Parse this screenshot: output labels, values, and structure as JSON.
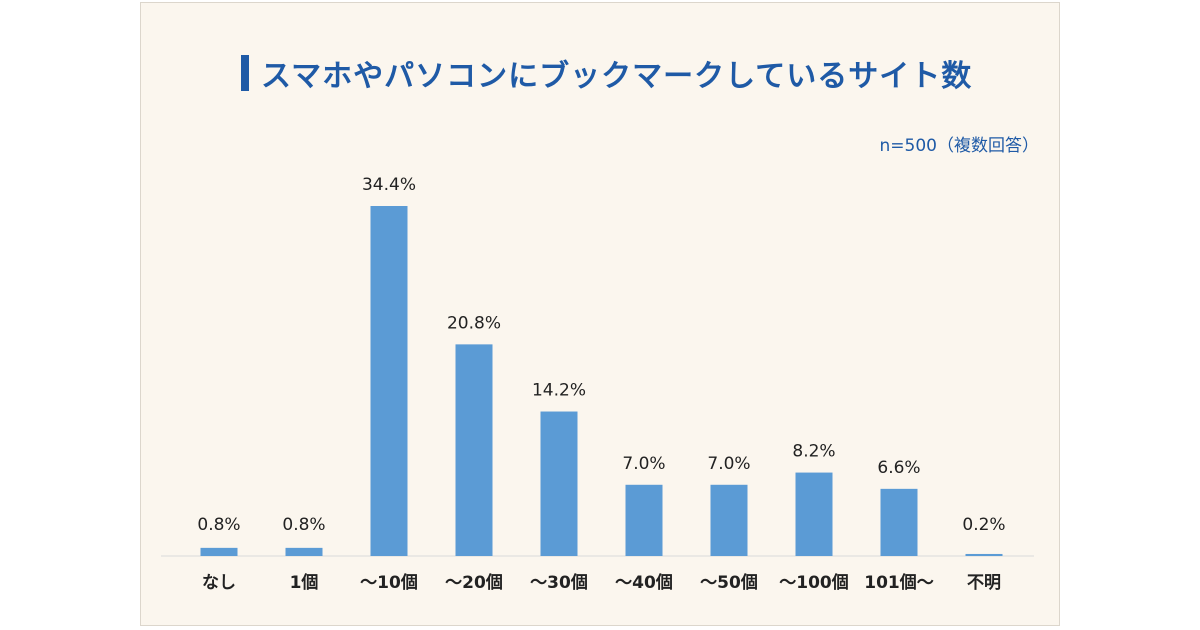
{
  "title": "スマホやパソコンにブックマークしているサイト数",
  "note": "n=500（複数回答）",
  "colors": {
    "bar": "#5b9bd5",
    "title": "#1f5aa6",
    "background": "#fbf6ee",
    "baseline": "#d9d9d9"
  },
  "chart_data": {
    "type": "bar",
    "title": "スマホやパソコンにブックマークしているサイト数",
    "categories": [
      "なし",
      "1個",
      "～10個",
      "～20個",
      "～30個",
      "～40個",
      "～50個",
      "～100個",
      "101個～",
      "不明"
    ],
    "values": [
      0.8,
      0.8,
      34.4,
      20.8,
      14.2,
      7.0,
      7.0,
      8.2,
      6.6,
      0.2
    ],
    "value_labels": [
      "0.8%",
      "0.8%",
      "34.4%",
      "20.8%",
      "14.2%",
      "7.0%",
      "7.0%",
      "8.2%",
      "6.6%",
      "0.2%"
    ],
    "xlabel": "",
    "ylabel": "",
    "ylim": [
      0,
      40
    ],
    "grid": false,
    "legend": "none"
  }
}
